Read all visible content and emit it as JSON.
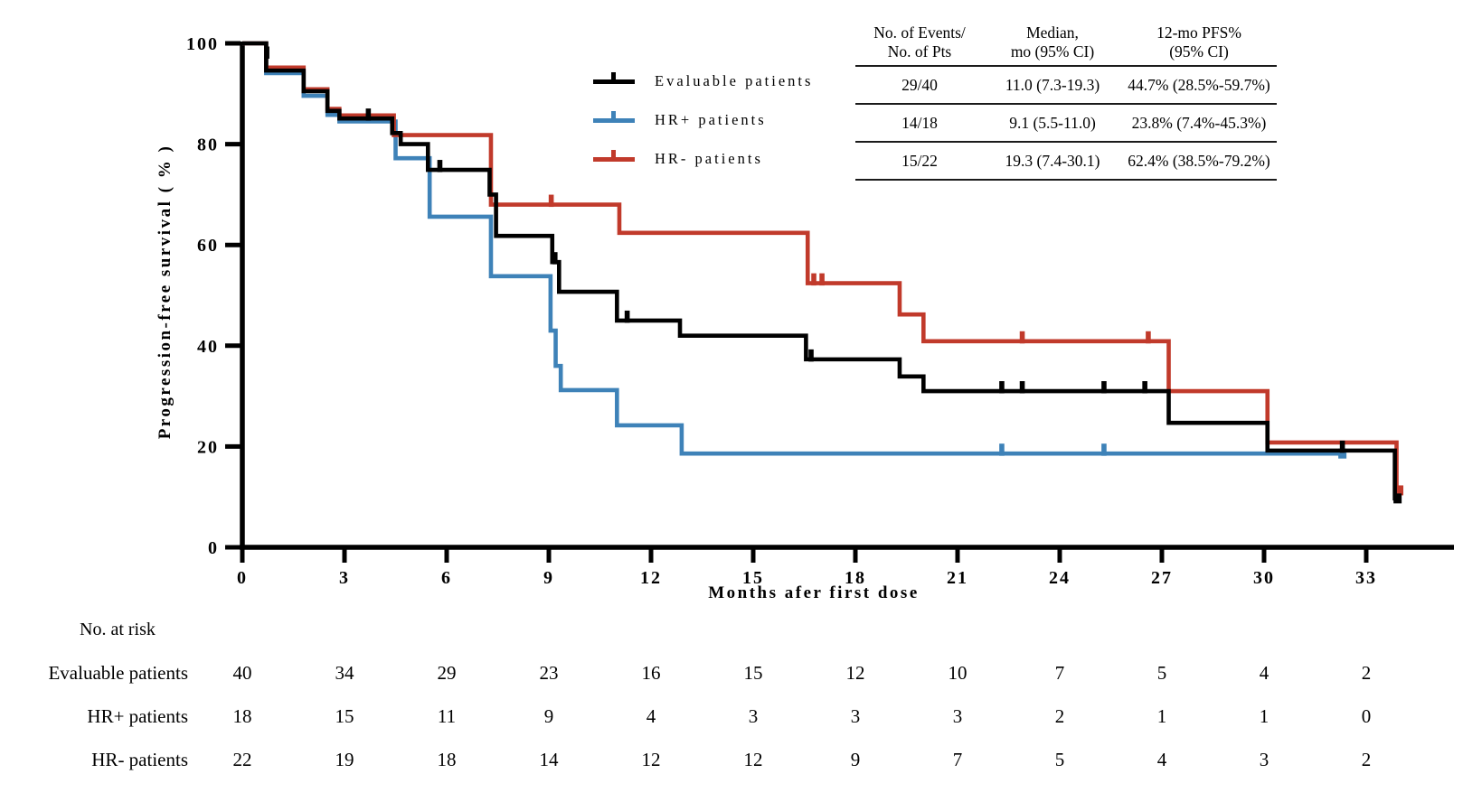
{
  "figure": {
    "y_axis_label": "Progression-free survival ( % )",
    "x_axis_label": "Months afer first dose"
  },
  "legend": {
    "items": [
      {
        "label": "Evaluable patients",
        "color": "#000000"
      },
      {
        "label": "HR+ patients",
        "color": "#3E82B8"
      },
      {
        "label": "HR- patients",
        "color": "#C13A2B"
      }
    ]
  },
  "stats_table": {
    "headers": [
      "No. of Events/\nNo. of Pts",
      "Median,\nmo (95% CI)",
      "12-mo PFS%\n(95% CI)"
    ],
    "rows": [
      [
        "29/40",
        "11.0 (7.3-19.3)",
        "44.7% (28.5%-59.7%)"
      ],
      [
        "14/18",
        "9.1 (5.5-11.0)",
        "23.8% (7.4%-45.3%)"
      ],
      [
        "15/22",
        "19.3 (7.4-30.1)",
        "62.4% (38.5%-79.2%)"
      ]
    ]
  },
  "risk_table": {
    "title": "No. at risk",
    "months": [
      0,
      3,
      6,
      9,
      12,
      15,
      18,
      21,
      24,
      27,
      30,
      33
    ],
    "rows": [
      {
        "label": "Evaluable patients",
        "values": [
          40,
          34,
          29,
          23,
          16,
          15,
          12,
          10,
          7,
          5,
          4,
          2
        ]
      },
      {
        "label": "HR+ patients",
        "values": [
          18,
          15,
          11,
          9,
          4,
          3,
          3,
          3,
          2,
          1,
          1,
          0
        ]
      },
      {
        "label": "HR- patients",
        "values": [
          22,
          19,
          18,
          14,
          12,
          12,
          9,
          7,
          5,
          4,
          3,
          2
        ]
      }
    ]
  },
  "chart_data": {
    "type": "line",
    "subtype": "kaplan-meier-step",
    "title": "",
    "xlabel": "Months afer first dose",
    "ylabel": "Progression-free survival (%)",
    "xlim": [
      0,
      35.5
    ],
    "ylim": [
      0,
      100
    ],
    "x_ticks": [
      0,
      3,
      6,
      9,
      12,
      15,
      18,
      21,
      24,
      27,
      30,
      33
    ],
    "y_ticks": [
      0,
      20,
      40,
      60,
      80,
      100
    ],
    "grid": false,
    "legend_position": "upper-left-of-table",
    "series": [
      {
        "name": "Evaluable patients",
        "color": "#000000",
        "steps": [
          [
            0,
            100
          ],
          [
            0.7,
            94.6
          ],
          [
            1.8,
            90.5
          ],
          [
            2.5,
            86.6
          ],
          [
            2.85,
            85.1
          ],
          [
            4.4,
            82.2
          ],
          [
            4.65,
            80
          ],
          [
            5.45,
            74.9
          ],
          [
            7.26,
            70
          ],
          [
            7.45,
            61.8
          ],
          [
            9.1,
            56.6
          ],
          [
            9.3,
            50.7
          ],
          [
            11,
            45
          ],
          [
            12.85,
            42
          ],
          [
            16.55,
            37.3
          ],
          [
            19.3,
            33.9
          ],
          [
            20,
            31
          ],
          [
            27.2,
            24.7
          ],
          [
            30.1,
            19.2
          ],
          [
            33.84,
            9.7
          ]
        ],
        "end_month": 33.95,
        "censors": [
          [
            0.72,
            97.4
          ],
          [
            3.7,
            85.1
          ],
          [
            5.8,
            74.9
          ],
          [
            9.18,
            56.6
          ],
          [
            11.3,
            45
          ],
          [
            16.7,
            37.3
          ],
          [
            22.3,
            31
          ],
          [
            22.9,
            31
          ],
          [
            25.3,
            31
          ],
          [
            26.5,
            31
          ],
          [
            32.3,
            19.2
          ]
        ],
        "end_cap": [
          33.92,
          9.7
        ]
      },
      {
        "name": "HR+ patients",
        "color": "#3E82B8",
        "steps": [
          [
            0,
            100
          ],
          [
            0.7,
            94.1
          ],
          [
            1.8,
            89.6
          ],
          [
            2.5,
            85.8
          ],
          [
            2.85,
            84.5
          ],
          [
            4.5,
            77.2
          ],
          [
            5.5,
            65.6
          ],
          [
            7.3,
            53.8
          ],
          [
            9.05,
            43
          ],
          [
            9.2,
            36
          ],
          [
            9.35,
            31.2
          ],
          [
            11,
            24.2
          ],
          [
            12.9,
            18.6
          ]
        ],
        "end_month": 32.35,
        "censors": [
          [
            22.3,
            18.6
          ],
          [
            25.3,
            18.6
          ]
        ],
        "end_cap": [
          32.3,
          18.6
        ]
      },
      {
        "name": "HR- patients",
        "color": "#C13A2B",
        "steps": [
          [
            0,
            100
          ],
          [
            0.7,
            95.2
          ],
          [
            1.8,
            90.9
          ],
          [
            2.5,
            87
          ],
          [
            2.85,
            85.7
          ],
          [
            4.45,
            81.8
          ],
          [
            7.3,
            68
          ],
          [
            11.07,
            62.4
          ],
          [
            16.6,
            52.4
          ],
          [
            19.3,
            46.2
          ],
          [
            20,
            40.9
          ],
          [
            27.2,
            31
          ],
          [
            30.1,
            20.8
          ],
          [
            33.89,
            11.3
          ]
        ],
        "end_month": 34.0,
        "censors": [
          [
            9.07,
            68
          ],
          [
            16.78,
            52.4
          ],
          [
            17.02,
            52.4
          ],
          [
            22.9,
            40.9
          ],
          [
            26.6,
            40.9
          ]
        ],
        "end_cap": [
          33.97,
          11.3
        ]
      }
    ]
  }
}
